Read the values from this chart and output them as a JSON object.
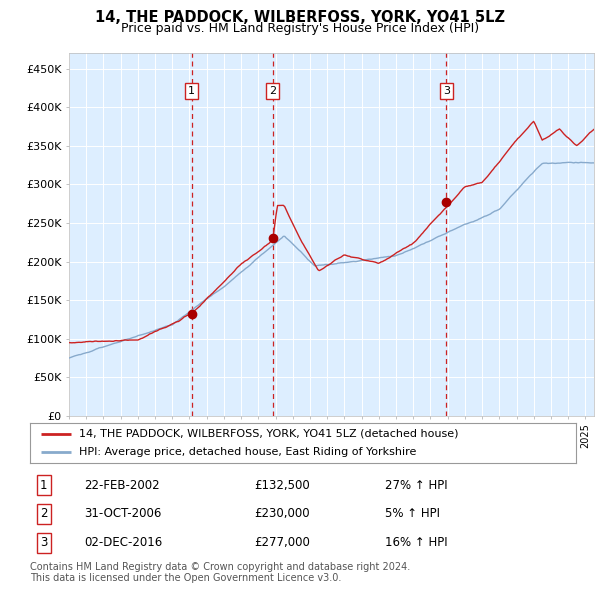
{
  "title": "14, THE PADDOCK, WILBERFOSS, YORK, YO41 5LZ",
  "subtitle": "Price paid vs. HM Land Registry's House Price Index (HPI)",
  "ylabel_ticks": [
    "£0",
    "£50K",
    "£100K",
    "£150K",
    "£200K",
    "£250K",
    "£300K",
    "£350K",
    "£400K",
    "£450K"
  ],
  "ytick_values": [
    0,
    50000,
    100000,
    150000,
    200000,
    250000,
    300000,
    350000,
    400000,
    450000
  ],
  "ylim": [
    0,
    470000
  ],
  "xlim_start": 1995.0,
  "xlim_end": 2025.5,
  "background_color": "#ffffff",
  "plot_bg_color": "#ddeeff",
  "grid_color": "#ffffff",
  "red_line_color": "#cc2222",
  "blue_line_color": "#88aacc",
  "sale_marker_color": "#aa0000",
  "dashed_line_color": "#cc2222",
  "sales": [
    {
      "num": 1,
      "date_x": 2002.13,
      "price": 132500
    },
    {
      "num": 2,
      "date_x": 2006.83,
      "price": 230000
    },
    {
      "num": 3,
      "date_x": 2016.92,
      "price": 277000
    }
  ],
  "legend_property_label": "14, THE PADDOCK, WILBERFOSS, YORK, YO41 5LZ (detached house)",
  "legend_hpi_label": "HPI: Average price, detached house, East Riding of Yorkshire",
  "table_rows": [
    {
      "num": 1,
      "date": "22-FEB-2002",
      "price": "£132,500",
      "change": "27% ↑ HPI"
    },
    {
      "num": 2,
      "date": "31-OCT-2006",
      "price": "£230,000",
      "change": "5% ↑ HPI"
    },
    {
      "num": 3,
      "date": "02-DEC-2016",
      "price": "£277,000",
      "change": "16% ↑ HPI"
    }
  ],
  "footer": "Contains HM Land Registry data © Crown copyright and database right 2024.\nThis data is licensed under the Open Government Licence v3.0.",
  "title_fontsize": 10.5,
  "subtitle_fontsize": 9,
  "axis_fontsize": 8,
  "legend_fontsize": 8,
  "table_fontsize": 8.5,
  "footer_fontsize": 7
}
